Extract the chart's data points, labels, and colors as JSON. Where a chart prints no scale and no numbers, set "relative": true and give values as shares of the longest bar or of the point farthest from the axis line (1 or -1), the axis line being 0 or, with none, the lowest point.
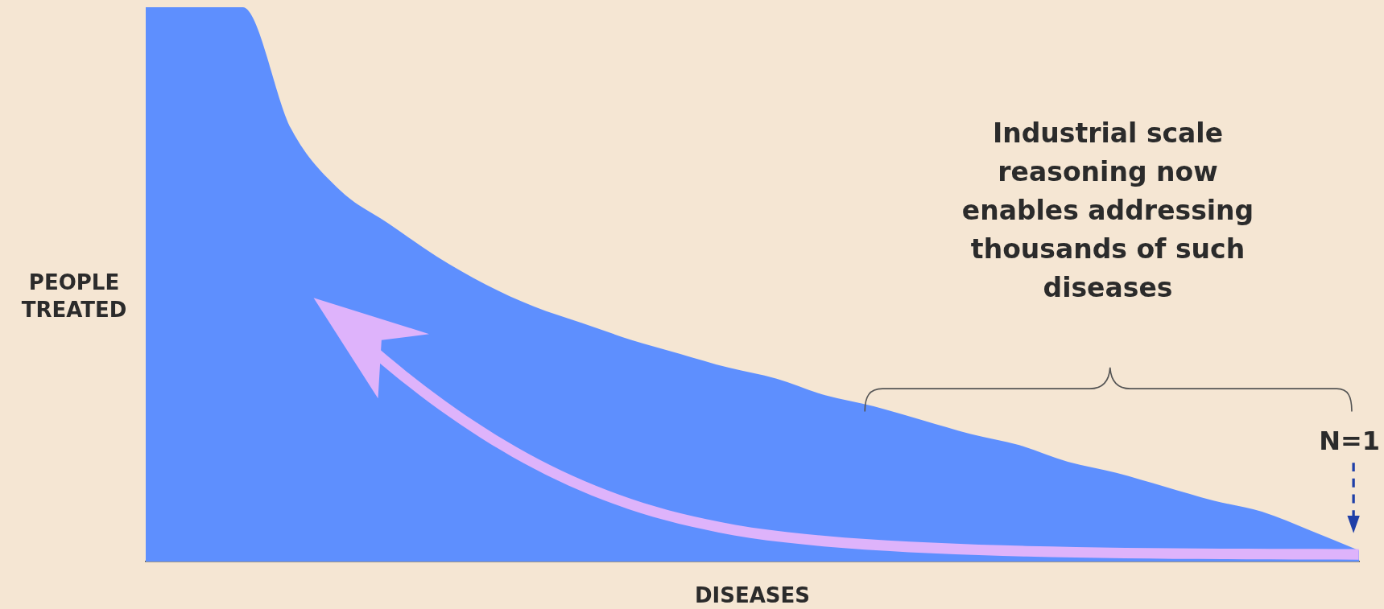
{
  "chart_data": {
    "type": "area",
    "relative": true,
    "xlabel": "DISEASES",
    "ylabel": "PEOPLE TREATED",
    "annotations": [
      "Industrial scale reasoning now enables addressing thousands of such diseases",
      "N=1"
    ],
    "categories": [
      null,
      null,
      null,
      null,
      null,
      null,
      null,
      null,
      null,
      null,
      null,
      null,
      null,
      null,
      null,
      null,
      null,
      null,
      null,
      null,
      null,
      null,
      null,
      null,
      null,
      null
    ],
    "series": [
      {
        "color": "#5e8ffe",
        "values": [
          1,
          1,
          1,
          0.78,
          0.67,
          0.61,
          0.55,
          0.5,
          0.46,
          0.43,
          0.4,
          0.375,
          0.35,
          0.33,
          0.3,
          0.28,
          0.255,
          0.23,
          0.21,
          0.18,
          0.16,
          0.135,
          0.11,
          0.09,
          0.056,
          0.02
        ]
      }
    ],
    "grid": false,
    "legend": false,
    "marker": "none"
  }
}
